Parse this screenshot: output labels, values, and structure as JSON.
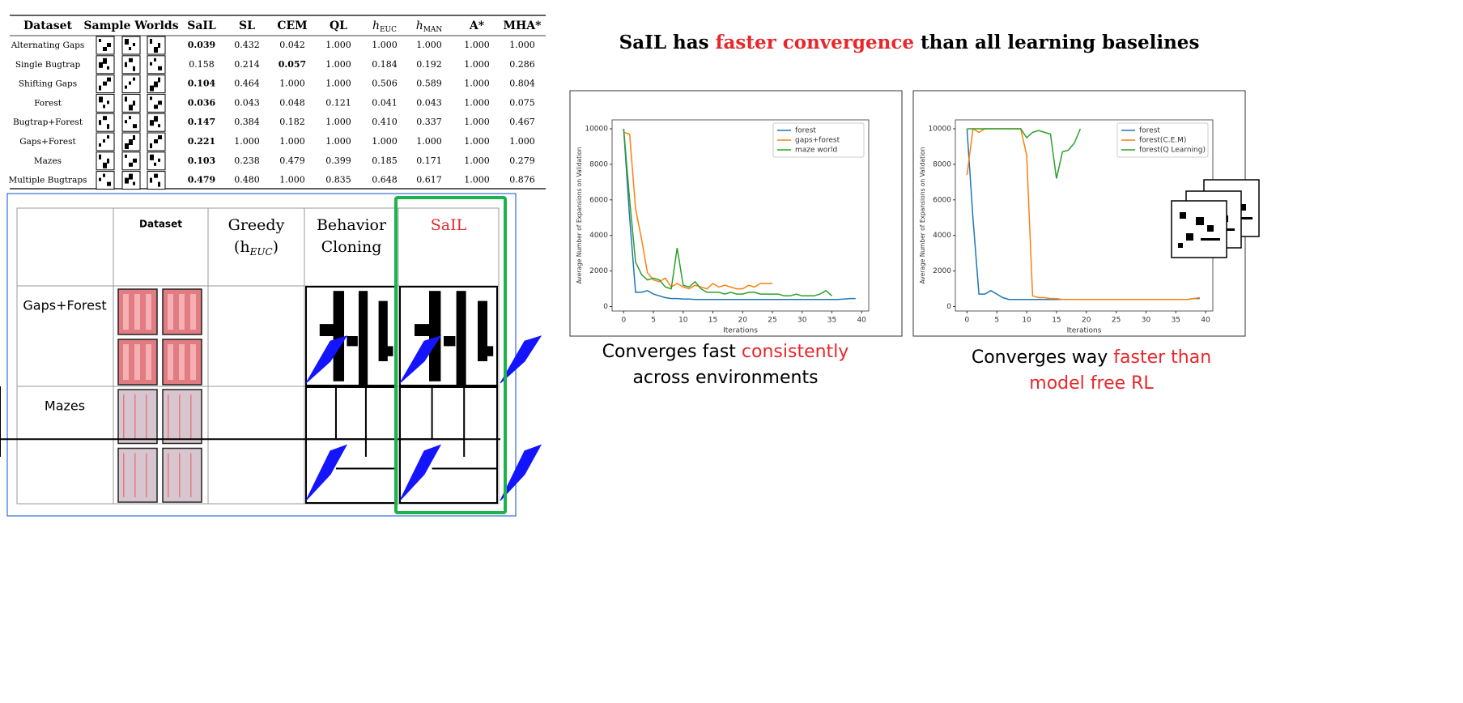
{
  "results_table": {
    "headers": [
      "Dataset",
      "Sample Worlds",
      "SaIL",
      "SL",
      "CEM",
      "QL",
      {
        "text": "h",
        "sub": "EUC"
      },
      {
        "text": "h",
        "sub": "MAN"
      },
      "A*",
      "MHA*"
    ],
    "rows": [
      {
        "name": "Alternating Gaps",
        "values": [
          "0.039",
          "0.432",
          "0.042",
          "1.000",
          "1.000",
          "1.000",
          "1.000",
          "1.000"
        ],
        "bold": [
          0
        ]
      },
      {
        "name": "Single Bugtrap",
        "values": [
          "0.158",
          "0.214",
          "0.057",
          "1.000",
          "0.184",
          "0.192",
          "1.000",
          "0.286"
        ],
        "bold": [
          2
        ]
      },
      {
        "name": "Shifting Gaps",
        "values": [
          "0.104",
          "0.464",
          "1.000",
          "1.000",
          "0.506",
          "0.589",
          "1.000",
          "0.804"
        ],
        "bold": [
          0
        ]
      },
      {
        "name": "Forest",
        "values": [
          "0.036",
          "0.043",
          "0.048",
          "0.121",
          "0.041",
          "0.043",
          "1.000",
          "0.075"
        ],
        "bold": [
          0
        ]
      },
      {
        "name": "Bugtrap+Forest",
        "values": [
          "0.147",
          "0.384",
          "0.182",
          "1.000",
          "0.410",
          "0.337",
          "1.000",
          "0.467"
        ],
        "bold": [
          0
        ]
      },
      {
        "name": "Gaps+Forest",
        "values": [
          "0.221",
          "1.000",
          "1.000",
          "1.000",
          "1.000",
          "1.000",
          "1.000",
          "1.000"
        ],
        "bold": [
          0
        ]
      },
      {
        "name": "Mazes",
        "values": [
          "0.103",
          "0.238",
          "0.479",
          "0.399",
          "0.185",
          "0.171",
          "1.000",
          "0.279"
        ],
        "bold": [
          0
        ]
      },
      {
        "name": "Multiple Bugtraps",
        "values": [
          "0.479",
          "0.480",
          "1.000",
          "0.835",
          "0.648",
          "0.617",
          "1.000",
          "0.876"
        ],
        "bold": [
          0
        ]
      }
    ]
  },
  "qualitative_table": {
    "headers": [
      [
        "Dataset"
      ],
      [
        "Greedy",
        {
          "text": "(h",
          "sub": "EUC",
          "tail": ")"
        }
      ],
      [
        "Behavior",
        "Cloning"
      ],
      [
        "SaIL"
      ]
    ],
    "rows": [
      "Gaps+Forest",
      "Mazes"
    ],
    "highlight": {
      "column": 3,
      "text_color": "#e8272b",
      "box_color": "#1db34a"
    }
  },
  "title": [
    {
      "text": "SaIL has ",
      "color": "#000000"
    },
    {
      "text": "faster convergence",
      "color": "#e8272b"
    },
    {
      "text": " than all learning baselines",
      "color": "#000000"
    }
  ],
  "chart_data": [
    {
      "type": "line",
      "x_label": "Iterations",
      "y_label": "Average Number of Expansions on Validation",
      "x": [
        0,
        1,
        2,
        3,
        4,
        5,
        6,
        7,
        8,
        9,
        10,
        11,
        12,
        13,
        14,
        15,
        16,
        17,
        18,
        19,
        20,
        21,
        22,
        23,
        24,
        25,
        26,
        27,
        28,
        29,
        30,
        31,
        32,
        33,
        34,
        35,
        36,
        37,
        38,
        39
      ],
      "xlim": [
        -1.95,
        41.2
      ],
      "ylim": [
        -250,
        10500
      ],
      "xticks": [
        0,
        5,
        10,
        15,
        20,
        25,
        30,
        35,
        40
      ],
      "yticks": [
        0,
        2000,
        4000,
        6000,
        8000,
        10000
      ],
      "legend": "upper right",
      "series": [
        {
          "name": "forest",
          "color": "#1f77b4",
          "values": [
            10000,
            5000,
            800,
            800,
            900,
            700,
            600,
            500,
            450,
            450,
            420,
            420,
            400,
            400,
            400,
            400,
            400,
            400,
            400,
            400,
            400,
            400,
            400,
            400,
            400,
            400,
            400,
            400,
            400,
            400,
            400,
            400,
            400,
            400,
            400,
            400,
            400,
            420,
            450,
            450
          ]
        },
        {
          "name": "gaps+forest",
          "color": "#ff7f0e",
          "values": [
            9800,
            9700,
            5500,
            3800,
            1900,
            1500,
            1400,
            1600,
            1100,
            1300,
            1100,
            1000,
            1200,
            1100,
            1000,
            1300,
            1100,
            1200,
            1100,
            1000,
            1000,
            1200,
            1100,
            1300,
            1300,
            1300,
            null,
            null,
            null,
            null,
            null,
            null,
            null,
            null,
            null,
            null,
            null,
            null,
            null,
            null
          ]
        },
        {
          "name": "maze world",
          "color": "#2ca02c",
          "values": [
            10000,
            6000,
            2500,
            1800,
            1500,
            1600,
            1500,
            1100,
            1000,
            3300,
            1200,
            1100,
            1400,
            1000,
            800,
            800,
            800,
            700,
            800,
            700,
            700,
            800,
            800,
            700,
            700,
            700,
            700,
            600,
            600,
            700,
            600,
            600,
            600,
            700,
            900,
            600,
            null,
            null,
            null,
            null
          ]
        }
      ]
    },
    {
      "type": "line",
      "x_label": "Iterations",
      "y_label": "Average Number of Expansions on Validation",
      "x": [
        0,
        1,
        2,
        3,
        4,
        5,
        6,
        7,
        8,
        9,
        10,
        11,
        12,
        13,
        14,
        15,
        16,
        17,
        18,
        19,
        20,
        21,
        22,
        23,
        24,
        25,
        26,
        27,
        28,
        29,
        30,
        31,
        32,
        33,
        34,
        35,
        36,
        37,
        38,
        39
      ],
      "xlim": [
        -1.95,
        41.2
      ],
      "ylim": [
        -250,
        10500
      ],
      "xticks": [
        0,
        5,
        10,
        15,
        20,
        25,
        30,
        35,
        40
      ],
      "yticks": [
        0,
        2000,
        4000,
        6000,
        8000,
        10000
      ],
      "legend": "upper right",
      "series": [
        {
          "name": "forest",
          "color": "#1f77b4",
          "values": [
            10000,
            5000,
            700,
            700,
            900,
            700,
            500,
            400,
            400,
            400,
            400,
            400,
            400,
            400,
            400,
            400,
            400,
            400,
            400,
            400,
            400,
            400,
            400,
            400,
            400,
            400,
            400,
            400,
            400,
            400,
            400,
            400,
            400,
            400,
            400,
            400,
            400,
            400,
            450,
            450
          ]
        },
        {
          "name": "forest(C.E.M)",
          "color": "#ff7f0e",
          "values": [
            7400,
            10000,
            9800,
            10000,
            10000,
            10000,
            10000,
            10000,
            10000,
            10000,
            8500,
            600,
            500,
            500,
            450,
            450,
            400,
            400,
            400,
            400,
            400,
            400,
            400,
            400,
            400,
            400,
            400,
            400,
            400,
            400,
            400,
            400,
            400,
            400,
            400,
            400,
            400,
            400,
            450,
            500
          ]
        },
        {
          "name": "forest(Q Learning)",
          "color": "#2ca02c",
          "values": [
            10000,
            10000,
            10000,
            10000,
            10000,
            10000,
            10000,
            10000,
            10000,
            10000,
            9500,
            9800,
            9900,
            9800,
            9700,
            7200,
            8700,
            8800,
            9200,
            10000,
            null,
            null,
            null,
            null,
            null,
            null,
            null,
            null,
            null,
            null,
            null,
            null,
            null,
            null,
            null,
            null,
            null,
            null,
            null,
            null
          ]
        }
      ]
    }
  ],
  "captions": [
    [
      [
        {
          "text": "Converges fast ",
          "color": "#000000"
        },
        {
          "text": "consistently",
          "color": "#e8272b"
        }
      ],
      [
        {
          "text": "across environments",
          "color": "#000000"
        }
      ]
    ],
    [
      [
        {
          "text": "Converges way ",
          "color": "#000000"
        },
        {
          "text": "faster than",
          "color": "#e8272b"
        }
      ],
      [
        {
          "text": "model free RL",
          "color": "#e8272b"
        }
      ]
    ]
  ]
}
